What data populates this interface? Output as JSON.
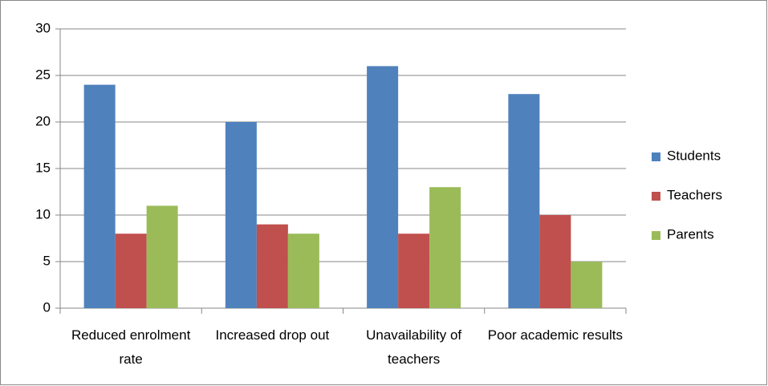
{
  "chart_data": {
    "type": "bar",
    "categories": [
      "Reduced enrolment rate",
      "Increased drop out",
      "Unavailability of teachers",
      "Poor academic results"
    ],
    "series": [
      {
        "name": "Students",
        "color": "#4f81bd",
        "values": [
          24,
          20,
          26,
          23
        ]
      },
      {
        "name": "Teachers",
        "color": "#c0504d",
        "values": [
          8,
          9,
          8,
          10
        ]
      },
      {
        "name": "Parents",
        "color": "#9bbb59",
        "values": [
          11,
          8,
          13,
          5
        ]
      }
    ],
    "ylim": [
      0,
      30
    ],
    "yticks": [
      0,
      5,
      10,
      15,
      20,
      25,
      30
    ],
    "grid": true,
    "legend": "right"
  }
}
